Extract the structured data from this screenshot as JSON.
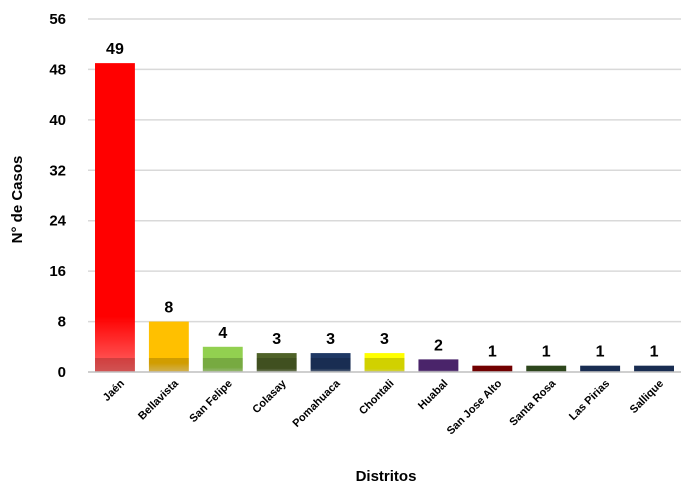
{
  "chart_data": {
    "type": "bar",
    "categories": [
      "Jaén",
      "Bellavista",
      "San Felipe",
      "Colasay",
      "Pomahuaca",
      "Chontali",
      "Huabal",
      "San Jose Alto",
      "Santa Rosa",
      "Las Pirias",
      "Sallique"
    ],
    "values": [
      49,
      8,
      4,
      3,
      3,
      3,
      2,
      1,
      1,
      1,
      1
    ],
    "bar_colors": [
      "#ff0000",
      "#ffc000",
      "#92d050",
      "#4f6228",
      "#1f3864",
      "#ffff00",
      "#5b2d82",
      "#8b0000",
      "#375623",
      "#1f3864",
      "#1f3864"
    ],
    "xlabel": "Distritos",
    "ylabel": "N° de Casos",
    "ylim": [
      0,
      56
    ],
    "yticks": [
      0,
      8,
      16,
      24,
      32,
      40,
      48,
      56
    ],
    "grid": true,
    "legend": "none"
  }
}
